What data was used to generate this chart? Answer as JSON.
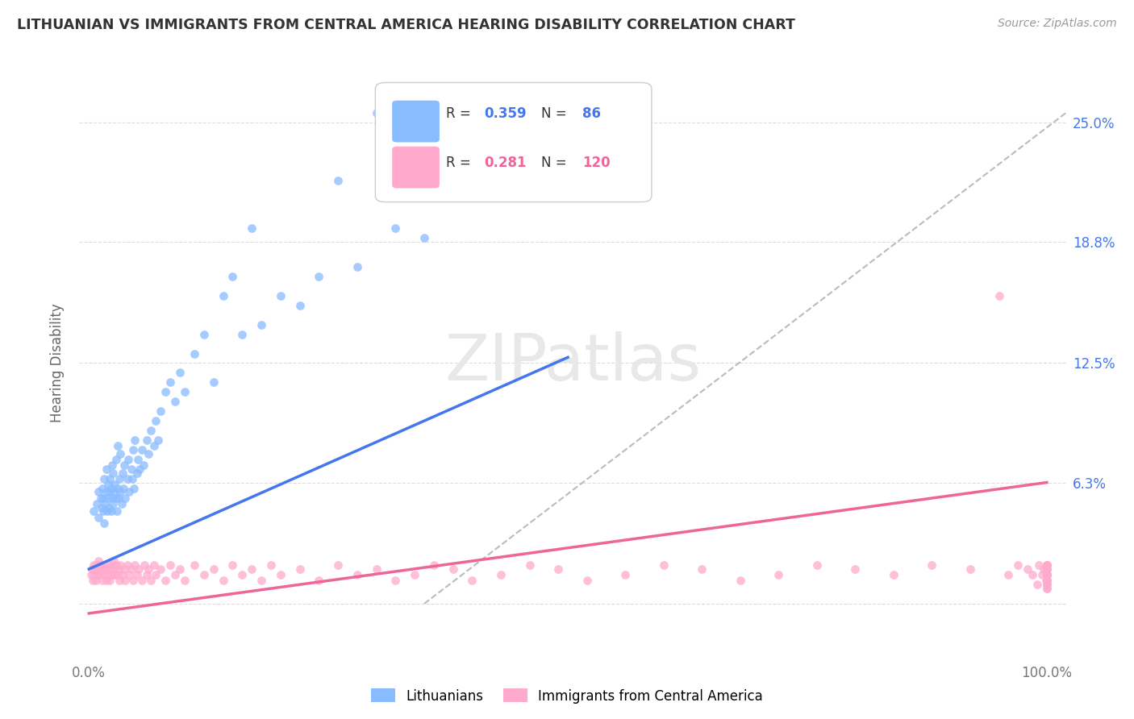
{
  "title": "LITHUANIAN VS IMMIGRANTS FROM CENTRAL AMERICA HEARING DISABILITY CORRELATION CHART",
  "source": "Source: ZipAtlas.com",
  "ylabel": "Hearing Disability",
  "y_tick_values": [
    0.0,
    0.063,
    0.125,
    0.188,
    0.25
  ],
  "y_tick_labels_left": [
    "",
    "",
    "",
    "",
    ""
  ],
  "y_tick_labels_right": [
    "",
    "6.3%",
    "12.5%",
    "18.8%",
    "25.0%"
  ],
  "x_lim": [
    -0.01,
    1.02
  ],
  "y_lim": [
    -0.03,
    0.28
  ],
  "color_blue": "#88bbff",
  "color_pink": "#ffaacc",
  "color_blue_line": "#4477ee",
  "color_pink_line": "#ee6699",
  "color_blue_text": "#4477ee",
  "color_pink_text": "#ee6699",
  "color_gray_dash": "#bbbbbb",
  "background_color": "#ffffff",
  "grid_color": "#dddddd",
  "blue_line_x0": 0.0,
  "blue_line_y0": 0.018,
  "blue_line_x1": 0.5,
  "blue_line_y1": 0.128,
  "pink_line_x0": 0.0,
  "pink_line_y0": -0.005,
  "pink_line_x1": 1.0,
  "pink_line_y1": 0.063,
  "gray_line_x0": 0.35,
  "gray_line_y0": 0.0,
  "gray_line_x1": 1.02,
  "gray_line_y1": 0.255,
  "blue_scatter_x": [
    0.005,
    0.008,
    0.01,
    0.01,
    0.012,
    0.013,
    0.014,
    0.015,
    0.015,
    0.016,
    0.016,
    0.017,
    0.018,
    0.018,
    0.019,
    0.02,
    0.02,
    0.021,
    0.022,
    0.022,
    0.023,
    0.023,
    0.024,
    0.024,
    0.025,
    0.025,
    0.026,
    0.027,
    0.028,
    0.028,
    0.029,
    0.03,
    0.03,
    0.031,
    0.032,
    0.033,
    0.033,
    0.034,
    0.035,
    0.036,
    0.037,
    0.038,
    0.04,
    0.041,
    0.042,
    0.044,
    0.045,
    0.046,
    0.047,
    0.048,
    0.05,
    0.051,
    0.053,
    0.055,
    0.057,
    0.06,
    0.062,
    0.065,
    0.068,
    0.07,
    0.072,
    0.075,
    0.08,
    0.085,
    0.09,
    0.095,
    0.1,
    0.11,
    0.12,
    0.13,
    0.14,
    0.15,
    0.16,
    0.17,
    0.18,
    0.2,
    0.22,
    0.24,
    0.26,
    0.28,
    0.3,
    0.32,
    0.35,
    0.38,
    0.42,
    0.45
  ],
  "blue_scatter_y": [
    0.048,
    0.052,
    0.045,
    0.058,
    0.055,
    0.05,
    0.06,
    0.048,
    0.055,
    0.042,
    0.065,
    0.052,
    0.058,
    0.07,
    0.048,
    0.055,
    0.062,
    0.05,
    0.058,
    0.065,
    0.048,
    0.06,
    0.055,
    0.072,
    0.052,
    0.068,
    0.058,
    0.062,
    0.055,
    0.075,
    0.048,
    0.06,
    0.082,
    0.055,
    0.065,
    0.058,
    0.078,
    0.052,
    0.068,
    0.06,
    0.072,
    0.055,
    0.065,
    0.075,
    0.058,
    0.07,
    0.065,
    0.08,
    0.06,
    0.085,
    0.068,
    0.075,
    0.07,
    0.08,
    0.072,
    0.085,
    0.078,
    0.09,
    0.082,
    0.095,
    0.085,
    0.1,
    0.11,
    0.115,
    0.105,
    0.12,
    0.11,
    0.13,
    0.14,
    0.115,
    0.16,
    0.17,
    0.14,
    0.195,
    0.145,
    0.16,
    0.155,
    0.17,
    0.22,
    0.175,
    0.255,
    0.195,
    0.19,
    0.215,
    0.225,
    0.24
  ],
  "pink_scatter_x": [
    0.002,
    0.003,
    0.004,
    0.005,
    0.005,
    0.006,
    0.007,
    0.008,
    0.009,
    0.01,
    0.01,
    0.011,
    0.012,
    0.013,
    0.014,
    0.015,
    0.016,
    0.017,
    0.018,
    0.019,
    0.02,
    0.021,
    0.022,
    0.023,
    0.024,
    0.025,
    0.026,
    0.027,
    0.028,
    0.03,
    0.031,
    0.032,
    0.033,
    0.035,
    0.037,
    0.038,
    0.04,
    0.042,
    0.044,
    0.046,
    0.048,
    0.05,
    0.052,
    0.055,
    0.058,
    0.06,
    0.062,
    0.065,
    0.068,
    0.07,
    0.075,
    0.08,
    0.085,
    0.09,
    0.095,
    0.1,
    0.11,
    0.12,
    0.13,
    0.14,
    0.15,
    0.16,
    0.17,
    0.18,
    0.19,
    0.2,
    0.22,
    0.24,
    0.26,
    0.28,
    0.3,
    0.32,
    0.34,
    0.36,
    0.38,
    0.4,
    0.43,
    0.46,
    0.49,
    0.52,
    0.56,
    0.6,
    0.64,
    0.68,
    0.72,
    0.76,
    0.8,
    0.84,
    0.88,
    0.92,
    0.95,
    0.96,
    0.97,
    0.98,
    0.985,
    0.99,
    0.992,
    0.995,
    0.997,
    0.999,
    1.0,
    1.0,
    1.0,
    1.0,
    1.0,
    1.0,
    1.0,
    1.0,
    1.0,
    1.0,
    1.0,
    1.0,
    1.0,
    1.0,
    1.0,
    1.0,
    1.0,
    1.0,
    1.0,
    1.0
  ],
  "pink_scatter_y": [
    0.015,
    0.018,
    0.012,
    0.02,
    0.015,
    0.018,
    0.012,
    0.02,
    0.015,
    0.018,
    0.022,
    0.015,
    0.02,
    0.018,
    0.012,
    0.02,
    0.015,
    0.018,
    0.012,
    0.02,
    0.015,
    0.018,
    0.012,
    0.02,
    0.015,
    0.018,
    0.022,
    0.015,
    0.02,
    0.015,
    0.018,
    0.012,
    0.02,
    0.015,
    0.018,
    0.012,
    0.02,
    0.015,
    0.018,
    0.012,
    0.02,
    0.015,
    0.018,
    0.012,
    0.02,
    0.015,
    0.018,
    0.012,
    0.02,
    0.015,
    0.018,
    0.012,
    0.02,
    0.015,
    0.018,
    0.012,
    0.02,
    0.015,
    0.018,
    0.012,
    0.02,
    0.015,
    0.018,
    0.012,
    0.02,
    0.015,
    0.018,
    0.012,
    0.02,
    0.015,
    0.018,
    0.012,
    0.015,
    0.02,
    0.018,
    0.012,
    0.015,
    0.02,
    0.018,
    0.012,
    0.015,
    0.02,
    0.018,
    0.012,
    0.015,
    0.02,
    0.018,
    0.015,
    0.02,
    0.018,
    0.16,
    0.015,
    0.02,
    0.018,
    0.015,
    0.01,
    0.02,
    0.015,
    0.018,
    0.012,
    0.015,
    0.02,
    0.018,
    0.012,
    0.015,
    0.01,
    0.008,
    0.02,
    0.018,
    0.015,
    0.012,
    0.02,
    0.015,
    0.01,
    0.008,
    0.018,
    0.015,
    0.012,
    0.02,
    0.015
  ]
}
